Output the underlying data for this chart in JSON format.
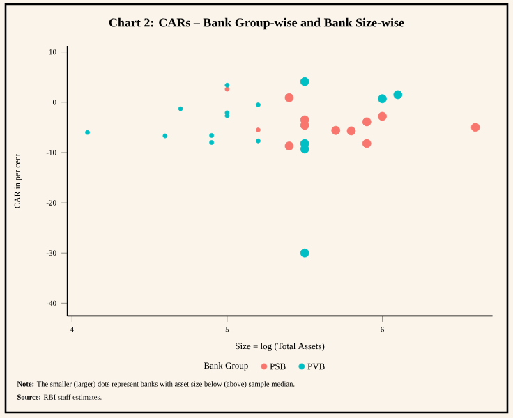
{
  "chart_data": {
    "type": "bubble",
    "title": "Chart 2: CARs – Bank Group-wise and Bank Size-wise",
    "xlabel": "Size = log (Total Assets)",
    "ylabel": "CAR in per cent",
    "legend_title": "Bank Group",
    "xlim": [
      3.97,
      6.71
    ],
    "ylim": [
      -42.5,
      11.2
    ],
    "xticks": [
      4,
      5,
      6
    ],
    "yticks": [
      10,
      0,
      -10,
      -20,
      -30,
      -40
    ],
    "legend": "bottom",
    "marker": "circle",
    "grid": false,
    "series": [
      {
        "name": "PSB",
        "color": "#f8766d",
        "x": [
          5.0,
          5.2,
          5.4,
          5.5,
          5.5,
          5.4,
          5.7,
          5.8,
          5.9,
          5.9,
          6.0,
          6.6
        ],
        "values": [
          2.6,
          -5.5,
          0.9,
          -3.5,
          -4.6,
          -8.7,
          -5.6,
          -5.7,
          -3.9,
          -8.2,
          -2.8,
          -5.0
        ],
        "sizes": [
          0.25,
          0.25,
          1,
          1,
          1,
          1,
          1,
          1,
          1,
          1,
          1,
          1
        ]
      },
      {
        "name": "PVB",
        "color": "#00bfc4",
        "x": [
          4.1,
          4.6,
          4.7,
          4.9,
          4.9,
          5.0,
          5.0,
          5.0,
          5.2,
          5.2,
          5.5,
          5.5,
          5.5,
          5.5,
          6.0,
          6.1
        ],
        "values": [
          -6.0,
          -6.7,
          -1.3,
          -6.6,
          -8.0,
          3.4,
          -2.1,
          -2.7,
          -0.5,
          -7.7,
          4.1,
          -8.2,
          -9.3,
          -30.0,
          0.7,
          1.5
        ],
        "sizes": [
          0.25,
          0.25,
          0.25,
          0.25,
          0.25,
          0.25,
          0.25,
          0.25,
          0.25,
          0.25,
          1,
          1,
          1,
          1,
          1,
          1
        ]
      }
    ],
    "annotations": [
      "**Note:** The smaller (larger) dots represent banks with asset size below (above) sample median.",
      "**Source:** RBI staff estimates."
    ]
  }
}
